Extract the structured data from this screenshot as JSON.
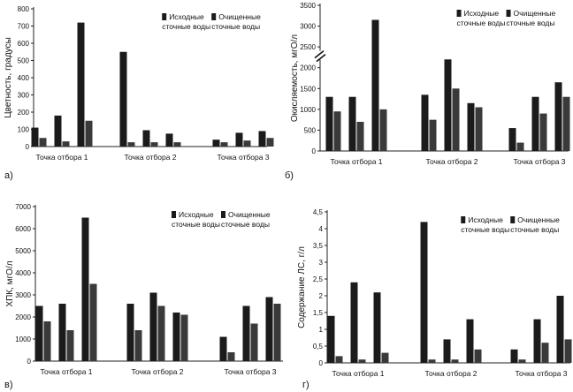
{
  "chart_data": [
    {
      "type": "bar",
      "panel_label": "а)",
      "ylabel": "Цветность, градусы",
      "ylim": [
        0,
        800
      ],
      "yticks": [
        0,
        100,
        200,
        300,
        400,
        500,
        600,
        700,
        800
      ],
      "groups": [
        "Точка отбора 1",
        "Точка отбора 2",
        "Точка отбора 3"
      ],
      "legend": [
        "Исходные сточные воды",
        "Очищенные сточные воды"
      ],
      "legend_position": "top-right",
      "bar_pairs": [
        [
          [
            110,
            50
          ],
          [
            180,
            30
          ],
          [
            720,
            150
          ]
        ],
        [
          [
            550,
            25
          ],
          [
            95,
            25
          ],
          [
            75,
            25
          ]
        ],
        [
          [
            40,
            25
          ],
          [
            80,
            35
          ],
          [
            90,
            50
          ]
        ]
      ]
    },
    {
      "type": "bar",
      "panel_label": "б)",
      "ylabel": "Окисляемость, мгО/л",
      "ylim": [
        0,
        3500
      ],
      "yticks": [
        0,
        500,
        1000,
        1500,
        2000,
        2500,
        3000,
        3500
      ],
      "axis_break": true,
      "groups": [
        "Точка отбора 1",
        "Точка отбора 2",
        "Точка отбора 3"
      ],
      "legend": [
        "Исходные сточные воды",
        "Очищенные сточные воды"
      ],
      "legend_position": "top-right",
      "bar_pairs": [
        [
          [
            1300,
            950
          ],
          [
            1300,
            700
          ],
          [
            3150,
            1000
          ]
        ],
        [
          [
            1350,
            750
          ],
          [
            2200,
            1500
          ],
          [
            1150,
            1050
          ]
        ],
        [
          [
            550,
            200
          ],
          [
            1300,
            900
          ],
          [
            1650,
            1300
          ]
        ]
      ]
    },
    {
      "type": "bar",
      "panel_label": "в)",
      "ylabel": "ХПК, мгО/л",
      "ylim": [
        0,
        7000
      ],
      "yticks": [
        0,
        1000,
        2000,
        3000,
        4000,
        5000,
        6000,
        7000
      ],
      "groups": [
        "Точка отбора 1",
        "Точка отбора 2",
        "Точка отбора 3"
      ],
      "legend": [
        "Исходные сточные воды",
        "Очищенные сточные воды"
      ],
      "legend_position": "top-right",
      "bar_pairs": [
        [
          [
            2500,
            1800
          ],
          [
            2600,
            1400
          ],
          [
            6500,
            3500
          ]
        ],
        [
          [
            2600,
            1400
          ],
          [
            3100,
            2500
          ],
          [
            2200,
            2100
          ]
        ],
        [
          [
            1100,
            400
          ],
          [
            2500,
            1700
          ],
          [
            2900,
            2600
          ]
        ]
      ]
    },
    {
      "type": "bar",
      "panel_label": "г)",
      "ylabel": "Содержание ЛС, г/л",
      "ylim": [
        0,
        4.5
      ],
      "yticks": [
        "0",
        "0,5",
        "1",
        "1,5",
        "2",
        "2,5",
        "3",
        "3,5",
        "4",
        "4,5"
      ],
      "groups": [
        "Точка отбора 1",
        "Точка отбора 2",
        "Точка отбора 3"
      ],
      "legend": [
        "Исходные сточные воды",
        "Очищенные сточные воды"
      ],
      "legend_position": "top-right",
      "bar_pairs": [
        [
          [
            1.4,
            0.2
          ],
          [
            2.4,
            0.1
          ],
          [
            2.1,
            0.3
          ]
        ],
        [
          [
            4.2,
            0.1
          ],
          [
            0.7,
            0.1
          ],
          [
            1.3,
            0.4
          ]
        ],
        [
          [
            0.4,
            0.1
          ],
          [
            1.3,
            0.6
          ],
          [
            2.0,
            0.7
          ]
        ]
      ]
    }
  ]
}
